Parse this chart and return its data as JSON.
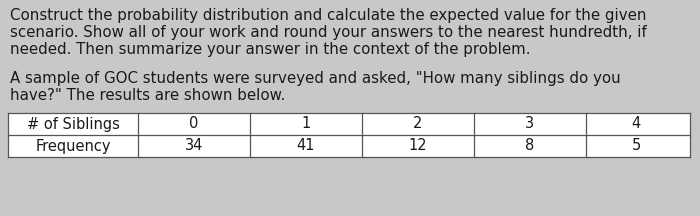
{
  "paragraph1_lines": [
    "Construct the probability distribution and calculate the expected value for the given",
    "scenario. Show all of your work and round your answers to the nearest hundredth, if",
    "needed. Then summarize your answer in the context of the problem."
  ],
  "paragraph2_lines": [
    "A sample of GOC students were surveyed and asked, \"How many siblings do you",
    "have?\" The results are shown below."
  ],
  "table_headers": [
    "# of Siblings",
    "0",
    "1",
    "2",
    "3",
    "4"
  ],
  "table_row2": [
    "Frequency",
    "34",
    "41",
    "12",
    "8",
    "5"
  ],
  "background_color": "#c8c8c8",
  "text_color": "#1a1a1a",
  "table_bg_color": "#ffffff",
  "table_border_color": "#555555",
  "font_size_body": 10.8,
  "font_size_table": 10.5,
  "figsize": [
    7.0,
    2.16
  ],
  "dpi": 100
}
